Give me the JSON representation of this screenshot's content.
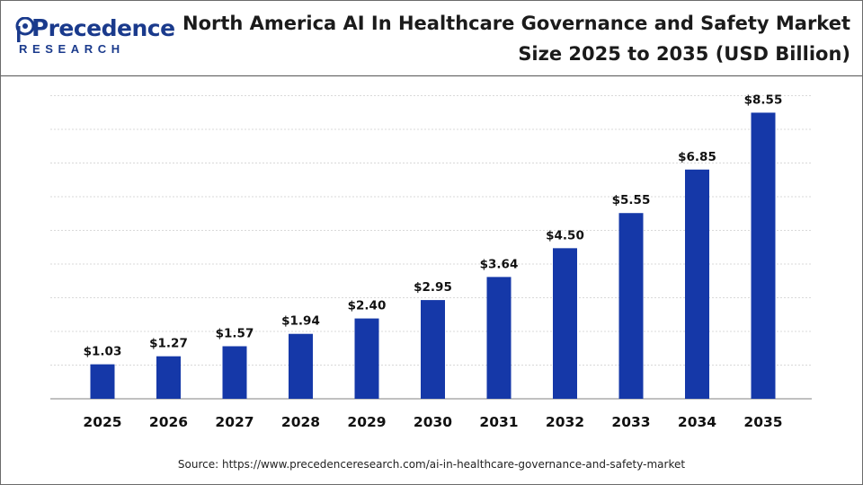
{
  "brand": {
    "logo_first_letter": "P",
    "logo_word": "recedence",
    "logo_sub": "RESEARCH",
    "brand_color": "#1a3a8c"
  },
  "source_text": "Source: https://www.precedenceresearch.com/ai-in-healthcare-governance-and-safety-market",
  "chart_data": {
    "type": "bar",
    "title": "North America AI In Healthcare Governance and Safety Market Size 2025 to 2035 (USD Billion)",
    "title_lines": [
      "North America AI In Healthcare Governance and Safety Market",
      "Size 2025 to 2035 (USD Billion)"
    ],
    "categories": [
      "2025",
      "2026",
      "2027",
      "2028",
      "2029",
      "2030",
      "2031",
      "2032",
      "2033",
      "2034",
      "2035"
    ],
    "values": [
      1.03,
      1.27,
      1.57,
      1.94,
      2.4,
      2.95,
      3.64,
      4.5,
      5.55,
      6.85,
      8.55
    ],
    "data_labels": [
      "$1.03",
      "$1.27",
      "$1.57",
      "$1.94",
      "$2.40",
      "$2.95",
      "$3.64",
      "$4.50",
      "$5.55",
      "$6.85",
      "$8.55"
    ],
    "xlabel": "",
    "ylabel": "",
    "ylim": [
      0,
      9
    ],
    "grid": true,
    "bar_color": "#1538a8"
  }
}
